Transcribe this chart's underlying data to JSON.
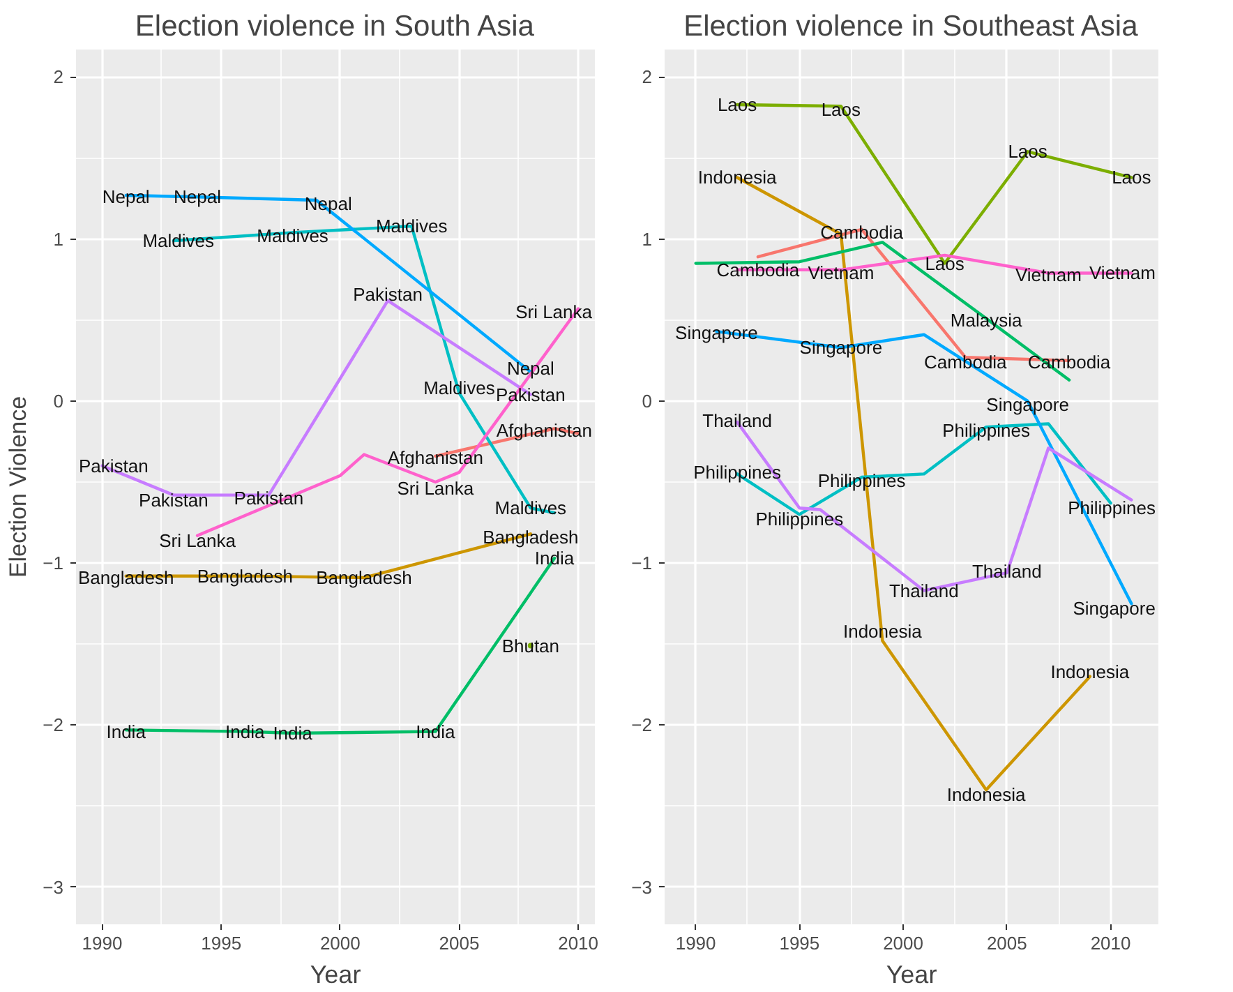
{
  "chart_data": [
    {
      "type": "line",
      "title": "Election violence in South Asia",
      "xlabel": "Year",
      "ylabel": "Election Violence",
      "xlim": [
        1988.9,
        2010.7
      ],
      "ylim": [
        -3.23,
        2.17
      ],
      "xticks": [
        1990,
        1995,
        2000,
        2005,
        2010
      ],
      "yticks": [
        -3,
        -2,
        -1,
        0,
        1,
        2
      ],
      "grid": true,
      "line_style": "solid",
      "marker": "none",
      "series": [
        {
          "color": "#f8766d",
          "x": [
            2004,
            2009,
            2010
          ],
          "values": [
            -0.34,
            -0.17,
            -0.2
          ]
        },
        {
          "color": "#7cae00",
          "x": [
            2008
          ],
          "values": [
            -1.51
          ]
        },
        {
          "color": "#cd9600",
          "x": [
            1991,
            1996,
            2001,
            2008
          ],
          "values": [
            -1.08,
            -1.08,
            -1.09,
            -0.82
          ]
        },
        {
          "color": "#00be67",
          "x": [
            1991,
            1996,
            1998,
            2004,
            2009
          ],
          "values": [
            -2.03,
            -2.04,
            -2.05,
            -2.04,
            -0.97
          ]
        },
        {
          "color": "#00bfc4",
          "x": [
            1993,
            1998,
            2003,
            2005,
            2008,
            2009
          ],
          "values": [
            0.99,
            1.04,
            1.08,
            0.05,
            -0.66,
            -0.69
          ]
        },
        {
          "color": "#00a9ff",
          "x": [
            1991,
            1994,
            1999,
            2008
          ],
          "values": [
            1.27,
            1.26,
            1.24,
            0.18
          ]
        },
        {
          "color": "#c77cff",
          "x": [
            1990,
            1993,
            1997,
            2002,
            2008
          ],
          "values": [
            -0.4,
            -0.58,
            -0.58,
            0.62,
            0.04
          ]
        },
        {
          "color": "#ff61cc",
          "x": [
            1994,
            2000,
            2001,
            2004,
            2005,
            2010
          ],
          "values": [
            -0.83,
            -0.46,
            -0.33,
            -0.5,
            -0.44,
            0.57
          ]
        }
      ],
      "annotations": [
        {
          "text": "Nepal",
          "x": 1991,
          "y": 1.26
        },
        {
          "text": "Nepal",
          "x": 1994,
          "y": 1.26
        },
        {
          "text": "Nepal",
          "x": 1999.5,
          "y": 1.22
        },
        {
          "text": "Nepal",
          "x": 2008,
          "y": 0.2
        },
        {
          "text": "Maldives",
          "x": 1993.2,
          "y": 0.99
        },
        {
          "text": "Maldives",
          "x": 1998,
          "y": 1.02
        },
        {
          "text": "Maldives",
          "x": 2003,
          "y": 1.08
        },
        {
          "text": "Maldives",
          "x": 2005,
          "y": 0.08
        },
        {
          "text": "Maldives",
          "x": 2008,
          "y": -0.66
        },
        {
          "text": "Pakistan",
          "x": 1990.2,
          "y": -0.4
        },
        {
          "text": "Pakistan",
          "x": 1993,
          "y": -0.61
        },
        {
          "text": "Pakistan",
          "x": 1997,
          "y": -0.6
        },
        {
          "text": "Pakistan",
          "x": 2002,
          "y": 0.66
        },
        {
          "text": "Pakistan",
          "x": 2008,
          "y": 0.04
        },
        {
          "text": "Sri Lanka",
          "x": 1994,
          "y": -0.86
        },
        {
          "text": "Sri Lanka",
          "x": 2004,
          "y": -0.54
        },
        {
          "text": "Sri Lanka",
          "x": 2009.6,
          "y": 0.55
        },
        {
          "text": "Afghanistan",
          "x": 2004,
          "y": -0.35
        },
        {
          "text": "Afghanistan",
          "x": 2009,
          "y": -0.18
        },
        {
          "text": "Bangladesh",
          "x": 1991,
          "y": -1.09
        },
        {
          "text": "Bangladesh",
          "x": 1996,
          "y": -1.08
        },
        {
          "text": "Bangladesh",
          "x": 2001,
          "y": -1.09
        },
        {
          "text": "Bangladesh",
          "x": 2008,
          "y": -0.84
        },
        {
          "text": "India",
          "x": 1991,
          "y": -2.04
        },
        {
          "text": "India",
          "x": 1996,
          "y": -2.04
        },
        {
          "text": "India",
          "x": 1998,
          "y": -2.05
        },
        {
          "text": "India",
          "x": 2004,
          "y": -2.04
        },
        {
          "text": "India",
          "x": 2009,
          "y": -0.97
        },
        {
          "text": "Bhutan",
          "x": 2008,
          "y": -1.51
        }
      ]
    },
    {
      "type": "line",
      "title": "Election violence in Southeast Asia",
      "xlabel": "Year",
      "xlim": [
        1988.5,
        2012.3
      ],
      "ylim": [
        -3.23,
        2.17
      ],
      "xticks": [
        1990,
        1995,
        2000,
        2005,
        2010
      ],
      "yticks": [
        -3,
        -2,
        -1,
        0,
        1,
        2
      ],
      "grid": true,
      "line_style": "solid",
      "marker": "none",
      "series": [
        {
          "color": "#f8766d",
          "x": [
            1993,
            1998,
            2003,
            2008
          ],
          "values": [
            0.89,
            1.06,
            0.27,
            0.25
          ]
        },
        {
          "color": "#cd9600",
          "x": [
            1992,
            1997,
            1999,
            2004,
            2009
          ],
          "values": [
            1.38,
            1.03,
            -1.48,
            -2.4,
            -1.7
          ]
        },
        {
          "color": "#7cae00",
          "x": [
            1992,
            1997,
            2002,
            2006,
            2011
          ],
          "values": [
            1.83,
            1.82,
            0.85,
            1.54,
            1.38
          ]
        },
        {
          "color": "#00be67",
          "x": [
            1990,
            1995,
            1999,
            2004,
            2008
          ],
          "values": [
            0.85,
            0.86,
            0.98,
            0.51,
            0.13
          ]
        },
        {
          "color": "#00bfc4",
          "x": [
            1992,
            1995,
            1998,
            2001,
            2004,
            2007,
            2010
          ],
          "values": [
            -0.45,
            -0.7,
            -0.47,
            -0.45,
            -0.16,
            -0.14,
            -0.63
          ]
        },
        {
          "color": "#00a9ff",
          "x": [
            1991,
            1997,
            2001,
            2006,
            2011
          ],
          "values": [
            0.43,
            0.33,
            0.41,
            0.0,
            -1.25
          ]
        },
        {
          "color": "#c77cff",
          "x": [
            1992,
            1995,
            1996,
            2001,
            2005,
            2007,
            2011
          ],
          "values": [
            -0.13,
            -0.66,
            -0.67,
            -1.17,
            -1.06,
            -0.29,
            -0.61
          ]
        },
        {
          "color": "#ff61cc",
          "x": [
            1992,
            1997,
            2002,
            2007,
            2011
          ],
          "values": [
            0.81,
            0.81,
            0.9,
            0.79,
            0.79
          ]
        }
      ],
      "annotations": [
        {
          "text": "Laos",
          "x": 1992,
          "y": 1.83
        },
        {
          "text": "Laos",
          "x": 1997,
          "y": 1.8
        },
        {
          "text": "Laos",
          "x": 2002,
          "y": 0.85
        },
        {
          "text": "Laos",
          "x": 2006,
          "y": 1.54
        },
        {
          "text": "Laos",
          "x": 2011,
          "y": 1.38
        },
        {
          "text": "Indonesia",
          "x": 1992,
          "y": 1.38
        },
        {
          "text": "Indonesia",
          "x": 1999,
          "y": -1.42
        },
        {
          "text": "Indonesia",
          "x": 2004,
          "y": -2.43
        },
        {
          "text": "Indonesia",
          "x": 2009,
          "y": -1.67
        },
        {
          "text": "Cambodia",
          "x": 1993,
          "y": 0.81
        },
        {
          "text": "Cambodia",
          "x": 1998,
          "y": 1.04
        },
        {
          "text": "Cambodia",
          "x": 2003,
          "y": 0.24
        },
        {
          "text": "Cambodia",
          "x": 2008,
          "y": 0.24
        },
        {
          "text": "Vietnam",
          "x": 1997,
          "y": 0.79
        },
        {
          "text": "Vietnam",
          "x": 2007,
          "y": 0.78
        },
        {
          "text": "Vietnam",
          "x": 2011,
          "y": 0.79
        },
        {
          "text": "Malaysia",
          "x": 2004,
          "y": 0.5
        },
        {
          "text": "Singapore",
          "x": 1991,
          "y": 0.42
        },
        {
          "text": "Singapore",
          "x": 1997,
          "y": 0.33
        },
        {
          "text": "Singapore",
          "x": 2006,
          "y": -0.02
        },
        {
          "text": "Singapore",
          "x": 2011,
          "y": -1.28
        },
        {
          "text": "Philippines",
          "x": 1992,
          "y": -0.44
        },
        {
          "text": "Philippines",
          "x": 1995,
          "y": -0.73
        },
        {
          "text": "Philippines",
          "x": 1998,
          "y": -0.49
        },
        {
          "text": "Philippines",
          "x": 2004,
          "y": -0.18
        },
        {
          "text": "Philippines",
          "x": 2010,
          "y": -0.66
        },
        {
          "text": "Thailand",
          "x": 1992,
          "y": -0.12
        },
        {
          "text": "Thailand",
          "x": 2001,
          "y": -1.17
        },
        {
          "text": "Thailand",
          "x": 2005,
          "y": -1.05
        }
      ]
    }
  ]
}
